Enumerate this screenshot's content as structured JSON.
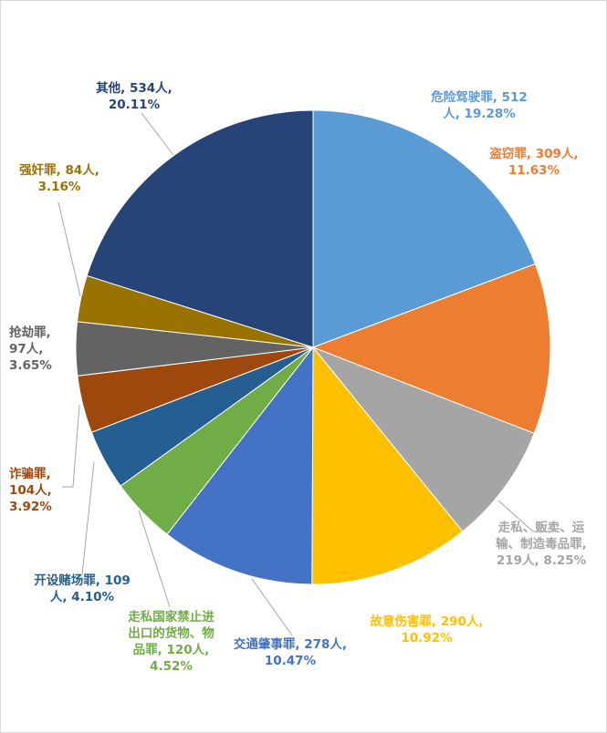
{
  "chart_data": {
    "type": "pie",
    "slices": [
      {
        "label": "危险驾驶罪",
        "count": 512,
        "percent": 19.28,
        "color": "#5b9bd5",
        "label_lines": [
          "危险驾驶罪, 512",
          "人, 19.28%"
        ]
      },
      {
        "label": "盗窃罪",
        "count": 309,
        "percent": 11.63,
        "color": "#ed7d31",
        "label_lines": [
          "盗窃罪, 309人,",
          "11.63%"
        ]
      },
      {
        "label": "走私、贩卖、运输、制造毒品罪",
        "count": 219,
        "percent": 8.25,
        "color": "#a5a5a5",
        "label_lines": [
          "走私、贩卖、运",
          "输、制造毒品罪,",
          "219人, 8.25%"
        ]
      },
      {
        "label": "故意伤害罪",
        "count": 290,
        "percent": 10.92,
        "color": "#ffc000",
        "label_lines": [
          "故意伤害罪, 290人,",
          "10.92%"
        ]
      },
      {
        "label": "交通肇事罪",
        "count": 278,
        "percent": 10.47,
        "color": "#4472c4",
        "label_lines": [
          "交通肇事罪, 278人,",
          "10.47%"
        ]
      },
      {
        "label": "走私国家禁止进出口的货物、物品罪",
        "count": 120,
        "percent": 4.52,
        "color": "#70ad47",
        "label_lines": [
          "走私国家禁止进",
          "出口的货物、物",
          "品罪, 120人,",
          "4.52%"
        ]
      },
      {
        "label": "开设赌场罪",
        "count": 109,
        "percent": 4.1,
        "color": "#255e91",
        "label_lines": [
          "开设赌场罪, 109",
          "人, 4.10%"
        ]
      },
      {
        "label": "诈骗罪",
        "count": 104,
        "percent": 3.92,
        "color": "#9e480e",
        "label_lines": [
          "诈骗罪,",
          "104人,",
          "3.92%"
        ]
      },
      {
        "label": "抢劫罪",
        "count": 97,
        "percent": 3.65,
        "color": "#636363",
        "label_lines": [
          "抢劫罪,",
          "97人,",
          "3.65%"
        ]
      },
      {
        "label": "强奸罪",
        "count": 84,
        "percent": 3.16,
        "color": "#997300",
        "label_lines": [
          "强奸罪, 84人,",
          "3.16%"
        ]
      },
      {
        "label": "其他",
        "count": 534,
        "percent": 20.11,
        "color": "#264478",
        "label_lines": [
          "其他, 534人,",
          "20.11%"
        ]
      }
    ]
  }
}
